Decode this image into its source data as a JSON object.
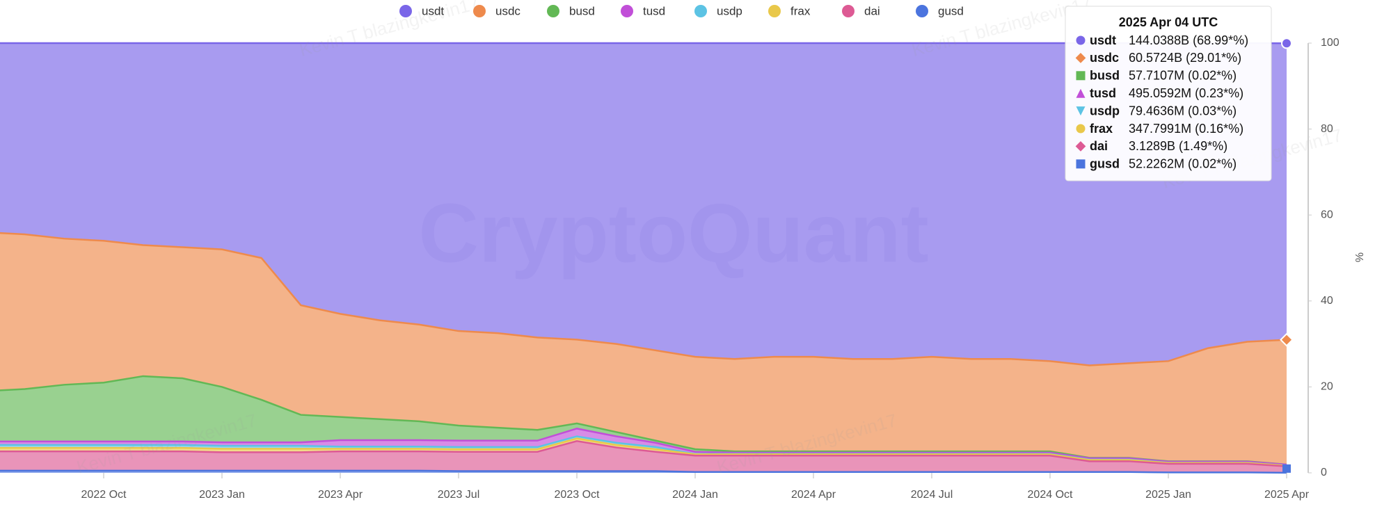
{
  "chart_data": {
    "type": "stacked_area",
    "y_label": "%",
    "watermarks": [
      "CryptoQuant",
      "Kevin T blazingkevin17"
    ],
    "x": [
      "2022 Jul",
      "2022 Aug",
      "2022 Sep",
      "2022 Oct",
      "2022 Nov",
      "2022 Dec",
      "2023 Jan",
      "2023 Feb",
      "2023 Mar",
      "2023 Apr",
      "2023 May",
      "2023 Jun",
      "2023 Jul",
      "2023 Aug",
      "2023 Sep",
      "2023 Oct",
      "2023 Nov",
      "2023 Dec",
      "2024 Jan",
      "2024 Feb",
      "2024 Mar",
      "2024 Apr",
      "2024 May",
      "2024 Jun",
      "2024 Jul",
      "2024 Aug",
      "2024 Sep",
      "2024 Oct",
      "2024 Nov",
      "2024 Dec",
      "2025 Jan",
      "2025 Feb",
      "2025 Mar",
      "2025 Apr"
    ],
    "xticks": [
      "2022 Oct",
      "2023 Jan",
      "2023 Apr",
      "2023 Jul",
      "2023 Oct",
      "2024 Jan",
      "2024 Apr",
      "2024 Jul",
      "2024 Oct",
      "2025 Jan",
      "2025 Apr"
    ],
    "ylim": [
      0,
      100
    ],
    "yticks": [
      0,
      20,
      40,
      60,
      80,
      100
    ],
    "series": [
      {
        "name": "usdt",
        "color": "#7a66e8",
        "values": [
          44,
          44.5,
          45.5,
          46,
          47,
          47.5,
          48,
          50,
          61,
          63,
          64.5,
          65.5,
          67,
          67.5,
          68.5,
          69,
          70,
          71.5,
          73,
          73.5,
          73,
          73,
          73.5,
          73.5,
          73,
          73.5,
          73.5,
          74,
          75,
          74.5,
          74,
          71,
          69.5,
          68.99
        ]
      },
      {
        "name": "usdc",
        "color": "#ee8a4c",
        "values": [
          37,
          36,
          34,
          33,
          30.5,
          30.5,
          32,
          33,
          25.5,
          24,
          23,
          22.5,
          22,
          22,
          21.5,
          19.5,
          20.5,
          21,
          21.5,
          21.5,
          22,
          22,
          21.5,
          21.5,
          22,
          21.5,
          21.5,
          21,
          21.5,
          22,
          23.3,
          26.3,
          27.8,
          29.01
        ]
      },
      {
        "name": "busd",
        "color": "#62b855",
        "values": [
          11.7,
          12.2,
          13.2,
          13.7,
          15.2,
          14.7,
          12.9,
          9.9,
          6.4,
          5.4,
          4.9,
          4.4,
          3.5,
          3,
          2.5,
          1.2,
          1,
          0.5,
          0.6,
          0.3,
          0.3,
          0.3,
          0.3,
          0.3,
          0.3,
          0.3,
          0.3,
          0.3,
          0.1,
          0.1,
          0.1,
          0.1,
          0.1,
          0.02
        ]
      },
      {
        "name": "tusd",
        "color": "#c14fd8",
        "values": [
          0.8,
          0.8,
          0.8,
          0.8,
          0.8,
          0.8,
          0.8,
          0.8,
          0.8,
          1.5,
          1.5,
          1.5,
          1.5,
          1.5,
          1.5,
          1.8,
          1.5,
          1,
          0.5,
          0.3,
          0.3,
          0.3,
          0.3,
          0.3,
          0.3,
          0.3,
          0.3,
          0.3,
          0.3,
          0.3,
          0.25,
          0.25,
          0.25,
          0.23
        ]
      },
      {
        "name": "usdp",
        "color": "#5cc3e4",
        "values": [
          0.7,
          0.7,
          0.7,
          0.7,
          0.7,
          0.7,
          0.7,
          0.7,
          0.7,
          0.5,
          0.5,
          0.5,
          0.5,
          0.5,
          0.5,
          0.5,
          0.5,
          0.5,
          0.1,
          0.1,
          0.1,
          0.1,
          0.1,
          0.1,
          0.1,
          0.1,
          0.1,
          0.1,
          0.1,
          0.1,
          0.05,
          0.05,
          0.05,
          0.03
        ]
      },
      {
        "name": "frax",
        "color": "#e9c84a",
        "values": [
          0.8,
          0.8,
          0.8,
          0.8,
          0.8,
          0.8,
          0.8,
          0.8,
          0.8,
          0.6,
          0.6,
          0.6,
          0.6,
          0.6,
          0.6,
          0.6,
          0.6,
          0.6,
          0.3,
          0.3,
          0.3,
          0.3,
          0.3,
          0.3,
          0.3,
          0.3,
          0.3,
          0.3,
          0.3,
          0.3,
          0.2,
          0.2,
          0.2,
          0.16
        ]
      },
      {
        "name": "dai",
        "color": "#dd5a94",
        "values": [
          4.5,
          4.5,
          4.5,
          4.5,
          4.5,
          4.5,
          4.3,
          4.3,
          4.3,
          4.5,
          4.5,
          4.5,
          4.5,
          4.5,
          4.5,
          7,
          5.5,
          4.5,
          3.8,
          3.8,
          3.8,
          3.8,
          3.8,
          3.8,
          3.8,
          3.8,
          3.8,
          3.8,
          2.5,
          2.5,
          2,
          2,
          2,
          1.49
        ]
      },
      {
        "name": "gusd",
        "color": "#4b74de",
        "values": [
          0.5,
          0.5,
          0.5,
          0.5,
          0.5,
          0.5,
          0.5,
          0.5,
          0.5,
          0.5,
          0.5,
          0.5,
          0.4,
          0.4,
          0.4,
          0.4,
          0.4,
          0.4,
          0.2,
          0.2,
          0.2,
          0.2,
          0.2,
          0.2,
          0.2,
          0.2,
          0.2,
          0.2,
          0.2,
          0.2,
          0.1,
          0.1,
          0.1,
          0.02
        ]
      }
    ],
    "tooltip": {
      "title": "2025 Apr 04 UTC",
      "entries": [
        "144.0388B (68.99*%)",
        "60.5724B (29.01*%)",
        "57.7107M (0.02*%)",
        "495.0592M (0.23*%)",
        "79.4636M (0.03*%)",
        "347.7991M (0.16*%)",
        "3.1289B (1.49*%)",
        "52.2262M (0.02*%)"
      ]
    }
  }
}
